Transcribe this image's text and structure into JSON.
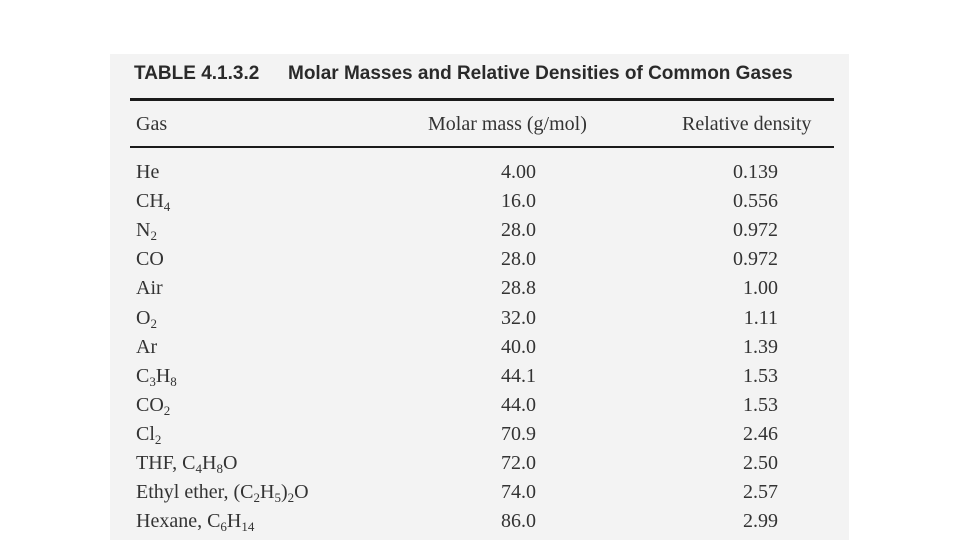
{
  "table": {
    "number": "TABLE 4.1.3.2",
    "title": "Molar Masses and Relative Densities of Common Gases",
    "headers": {
      "gas": "Gas",
      "mass": "Molar mass (g/mol)",
      "density": "Relative density"
    },
    "rows": [
      {
        "gas": [
          "He"
        ],
        "mass": "4.00",
        "density": "0.139"
      },
      {
        "gas": [
          "CH",
          {
            "sub": "4"
          }
        ],
        "mass": "16.0",
        "density": "0.556"
      },
      {
        "gas": [
          "N",
          {
            "sub": "2"
          }
        ],
        "mass": "28.0",
        "density": "0.972"
      },
      {
        "gas": [
          "CO"
        ],
        "mass": "28.0",
        "density": "0.972"
      },
      {
        "gas": [
          "Air"
        ],
        "mass": "28.8",
        "density": "1.00"
      },
      {
        "gas": [
          "O",
          {
            "sub": "2"
          }
        ],
        "mass": "32.0",
        "density": "1.11"
      },
      {
        "gas": [
          "Ar"
        ],
        "mass": "40.0",
        "density": "1.39"
      },
      {
        "gas": [
          "C",
          {
            "sub": "3"
          },
          "H",
          {
            "sub": "8"
          }
        ],
        "mass": "44.1",
        "density": "1.53"
      },
      {
        "gas": [
          "CO",
          {
            "sub": "2"
          }
        ],
        "mass": "44.0",
        "density": "1.53"
      },
      {
        "gas": [
          "Cl",
          {
            "sub": "2"
          }
        ],
        "mass": "70.9",
        "density": "2.46"
      },
      {
        "gas": [
          "THF, C",
          {
            "sub": "4"
          },
          "H",
          {
            "sub": "8"
          },
          "O"
        ],
        "mass": "72.0",
        "density": "2.50"
      },
      {
        "gas": [
          "Ethyl ether, (C",
          {
            "sub": "2"
          },
          "H",
          {
            "sub": "5"
          },
          ")",
          {
            "sub": "2"
          },
          "O"
        ],
        "mass": "74.0",
        "density": "2.57"
      },
      {
        "gas": [
          "Hexane, C",
          {
            "sub": "6"
          },
          "H",
          {
            "sub": "14"
          }
        ],
        "mass": "86.0",
        "density": "2.99"
      }
    ]
  }
}
